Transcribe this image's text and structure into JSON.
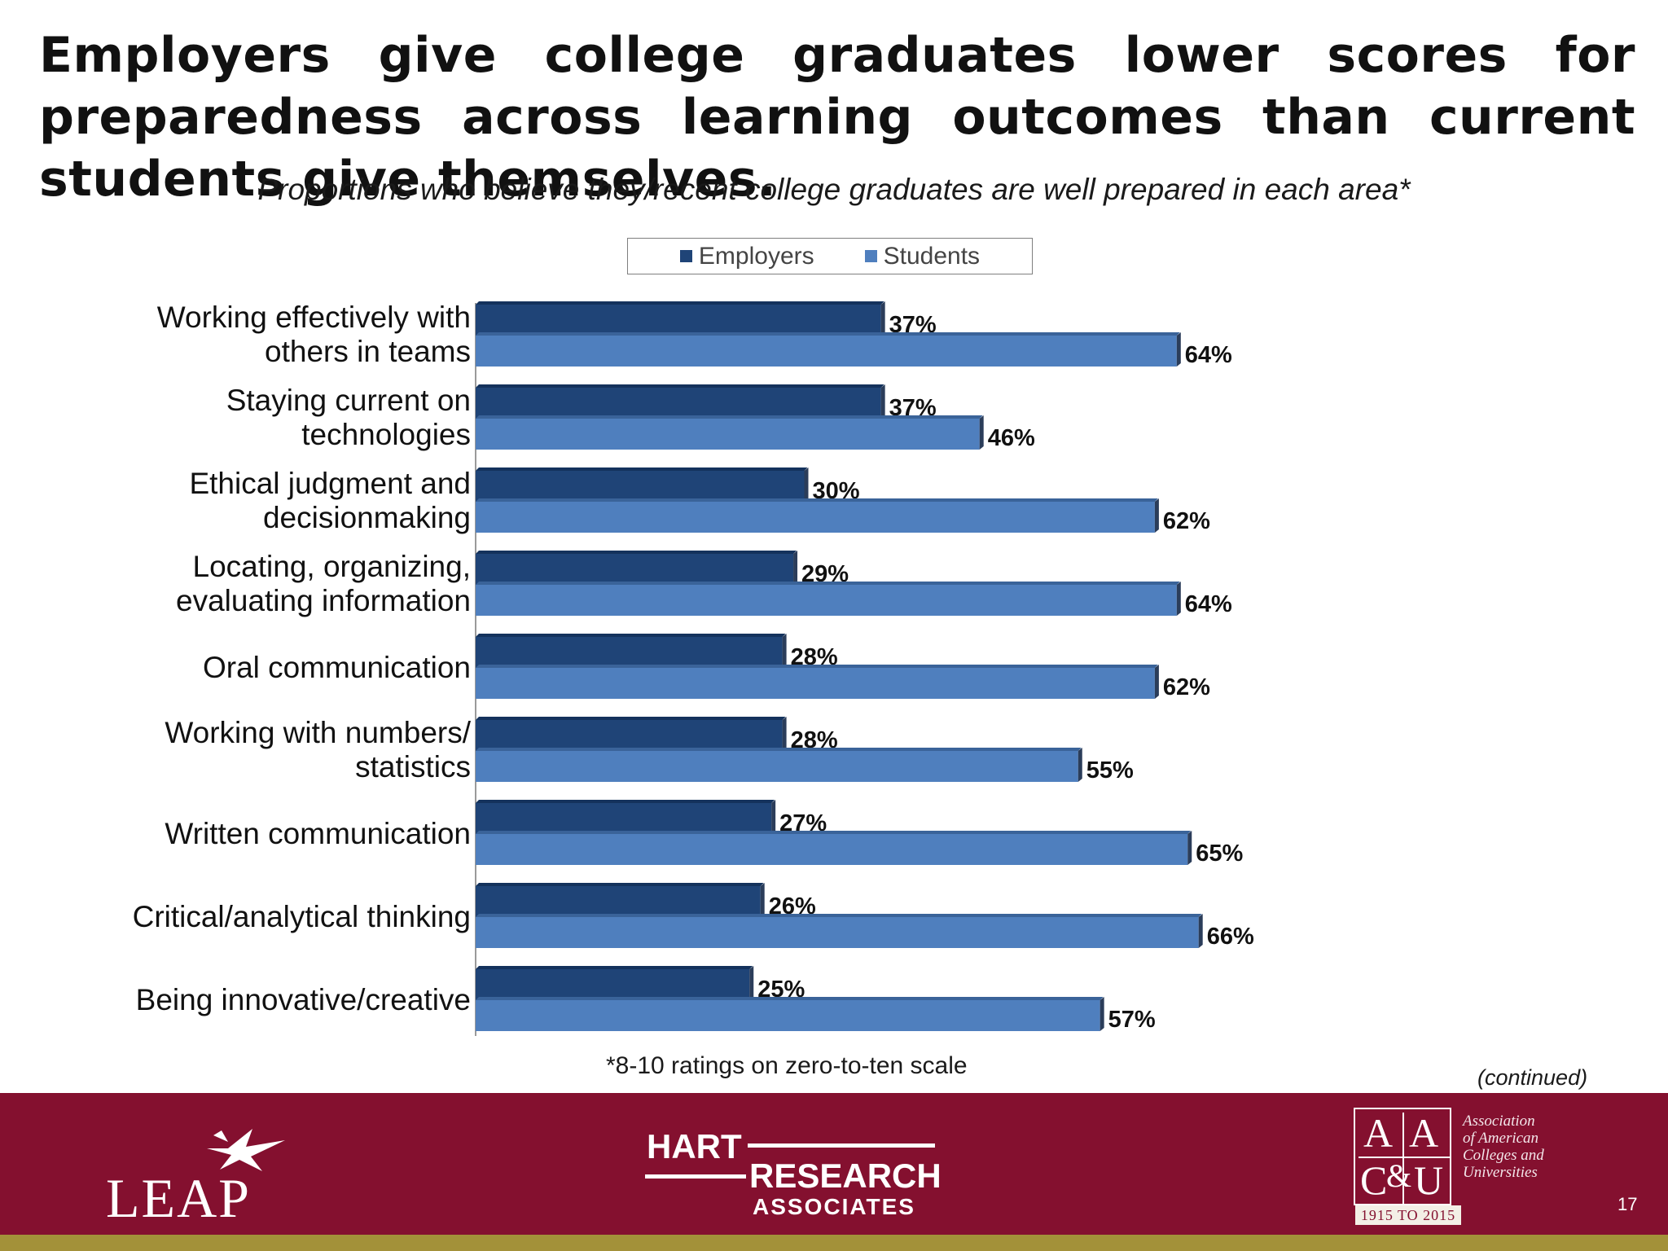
{
  "title": "Employers give college graduates lower scores for preparedness across learning outcomes than current students give themselves.",
  "subtitle": "Proportions who believe they/recent college graduates are well prepared in each area*",
  "footnote": "*8-10 ratings on zero-to-ten scale",
  "continued": "(continued)",
  "page_number": "17",
  "footer": {
    "leap": "LEAP",
    "hart": {
      "line1": "HART",
      "line2": "RESEARCH",
      "line3": "ASSOCIATES"
    },
    "aacu": {
      "letters": [
        "A",
        "A",
        "C",
        "&",
        "U"
      ],
      "years": "1915 TO 2015",
      "name_lines": [
        "Association",
        "of American",
        "Colleges and",
        "Universities"
      ]
    }
  },
  "colors": {
    "employers": "#1f4477",
    "students": "#4f7fbe",
    "footer": "#84102f",
    "stripe": "#a39139"
  },
  "chart_data": {
    "type": "bar",
    "orientation": "horizontal",
    "categories": [
      [
        "Working effectively with",
        "others in teams"
      ],
      [
        "Staying current on",
        "technologies"
      ],
      [
        "Ethical judgment and",
        "decisionmaking"
      ],
      [
        "Locating, organizing,",
        "evaluating information"
      ],
      [
        "Oral communication"
      ],
      [
        "Working with numbers/",
        "statistics"
      ],
      [
        "Written communication"
      ],
      [
        "Critical/analytical thinking"
      ],
      [
        "Being innovative/creative"
      ]
    ],
    "series": [
      {
        "name": "Employers",
        "values": [
          37,
          37,
          30,
          29,
          28,
          28,
          27,
          26,
          25
        ],
        "labels": [
          "37%",
          "37%",
          "30%",
          "29%",
          "28%",
          "28%",
          "27%",
          "26%",
          "25%"
        ]
      },
      {
        "name": "Students",
        "values": [
          64,
          46,
          62,
          64,
          62,
          55,
          65,
          66,
          57
        ],
        "labels": [
          "64%",
          "46%",
          "62%",
          "64%",
          "62%",
          "55%",
          "65%",
          "66%",
          "57%"
        ]
      }
    ],
    "legend_position": "top-center",
    "grid": false,
    "xlim": [
      0,
      100
    ]
  }
}
